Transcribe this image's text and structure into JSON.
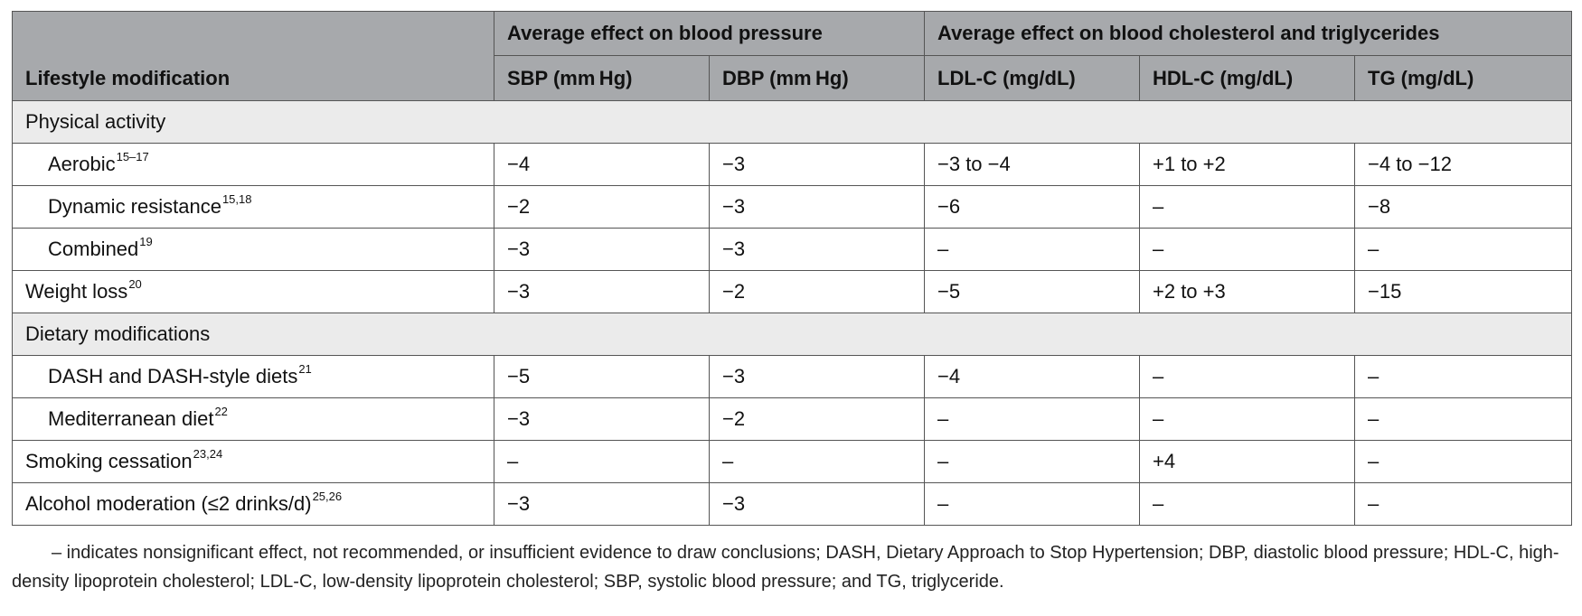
{
  "table": {
    "header": {
      "lifestyle": "Lifestyle modification",
      "group_bp": "Average effect on blood pressure",
      "group_lipids": "Average effect on blood cholesterol and triglycerides",
      "columns": [
        "SBP (mm Hg)",
        "DBP (mm Hg)",
        "LDL-C (mg/dL)",
        "HDL-C (mg/dL)",
        "TG (mg/dL)"
      ]
    },
    "rows": [
      {
        "label": "Physical activity",
        "section": true
      },
      {
        "label": "Aerobic",
        "ref": "15–17",
        "indent": true,
        "values": [
          "−4",
          "−3",
          "−3 to −4",
          "+1 to +2",
          "−4 to −12"
        ]
      },
      {
        "label": "Dynamic resistance",
        "ref": "15,18",
        "indent": true,
        "values": [
          "−2",
          "−3",
          "−6",
          "–",
          "−8"
        ]
      },
      {
        "label": "Combined",
        "ref": "19",
        "indent": true,
        "values": [
          "−3",
          "−3",
          "–",
          "–",
          "–"
        ]
      },
      {
        "label": "Weight loss",
        "ref": "20",
        "values": [
          "−3",
          "−2",
          "−5",
          "+2 to +3",
          "−15"
        ]
      },
      {
        "label": "Dietary modifications",
        "section": true
      },
      {
        "label": "DASH and DASH-style diets",
        "ref": "21",
        "indent": true,
        "values": [
          "−5",
          "−3",
          "−4",
          "–",
          "–"
        ]
      },
      {
        "label": "Mediterranean diet",
        "ref": "22",
        "indent": true,
        "values": [
          "−3",
          "−2",
          "–",
          "–",
          "–"
        ]
      },
      {
        "label": "Smoking cessation",
        "ref": "23,24",
        "values": [
          "–",
          "–",
          "–",
          "+4",
          "–"
        ]
      },
      {
        "label": "Alcohol moderation (≤2 drinks/d)",
        "ref": "25,26",
        "values": [
          "−3",
          "−3",
          "–",
          "–",
          "–"
        ]
      }
    ]
  },
  "footnote": "– indicates nonsignificant effect, not recommended, or insufficient evidence to draw conclusions; DASH, Dietary Approach to Stop Hypertension; DBP, diastolic blood pressure; HDL-C, high-density lipoprotein cholesterol; LDL-C, low-density lipoprotein cholesterol; SBP, systolic blood pressure; and TG, triglyceride."
}
